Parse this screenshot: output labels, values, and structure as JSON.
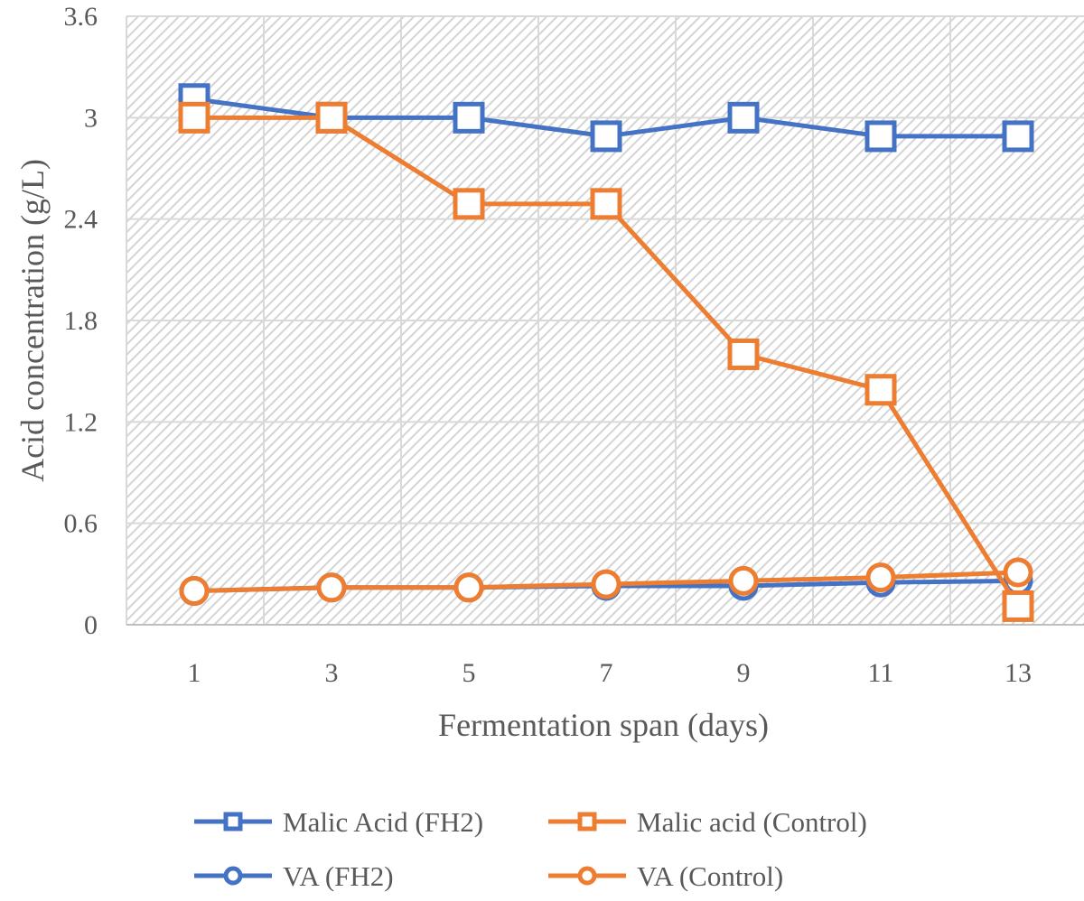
{
  "chart_data": {
    "type": "line",
    "title": "",
    "xlabel": "Fermentation span (days)",
    "ylabel": "Acid concentration (g/L)",
    "x": [
      1,
      3,
      5,
      7,
      9,
      11,
      13
    ],
    "x_tick_labels": [
      "1",
      "3",
      "5",
      "7",
      "9",
      "11",
      "13"
    ],
    "ylim": [
      0,
      3.6
    ],
    "y_ticks": [
      0,
      0.6,
      1.2,
      1.8,
      2.4,
      3,
      3.6
    ],
    "y_tick_labels": [
      "0",
      "0.6",
      "1.2",
      "1.8",
      "2.4",
      "3",
      "3.6"
    ],
    "grid": true,
    "legend_position": "bottom",
    "series": [
      {
        "name": "Malic Acid (FH2)",
        "marker": "square",
        "color": "#4472C4",
        "values": [
          3.11,
          3.0,
          3.0,
          2.89,
          3.0,
          2.89,
          2.89
        ]
      },
      {
        "name": "Malic acid (Control)",
        "marker": "square",
        "color": "#ED7D31",
        "values": [
          3.0,
          3.0,
          2.49,
          2.49,
          1.6,
          1.39,
          0.11
        ]
      },
      {
        "name": "VA (FH2)",
        "marker": "circle",
        "color": "#4472C4",
        "values": [
          0.2,
          0.22,
          0.22,
          0.23,
          0.23,
          0.25,
          0.26
        ]
      },
      {
        "name": "VA (Control)",
        "marker": "circle",
        "color": "#ED7D31",
        "values": [
          0.2,
          0.22,
          0.22,
          0.24,
          0.26,
          0.28,
          0.31
        ]
      }
    ]
  }
}
